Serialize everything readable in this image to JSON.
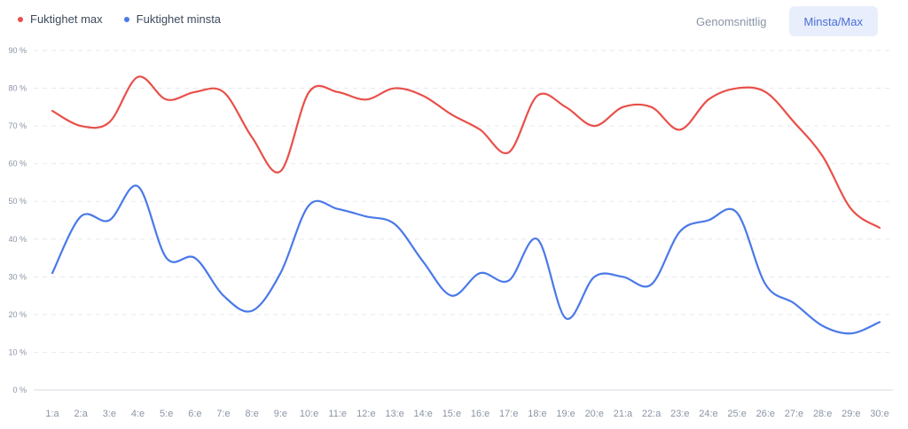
{
  "legend": {
    "max_label": "Fuktighet max",
    "min_label": "Fuktighet minsta"
  },
  "toggle": {
    "average_label": "Genomsnittlig",
    "minmax_label": "Minsta/Max",
    "selected": "Minsta/Max"
  },
  "colors": {
    "max": "#e8504a",
    "min": "#4a79e8",
    "grid": "#e6e9ef",
    "toggle_active_bg": "#e8eefc",
    "toggle_active_text": "#4a6fd6"
  },
  "chart_data": {
    "type": "line",
    "categories": [
      "1:a",
      "2:a",
      "3:e",
      "4:e",
      "5:e",
      "6:e",
      "7:e",
      "8:e",
      "9:e",
      "10:e",
      "11:e",
      "12:e",
      "13:e",
      "14:e",
      "15:e",
      "16:e",
      "17:e",
      "18:e",
      "19:e",
      "20:e",
      "21:a",
      "22:a",
      "23:e",
      "24:e",
      "25:e",
      "26:e",
      "27:e",
      "28:e",
      "29:e",
      "30:e"
    ],
    "series": [
      {
        "name": "Fuktighet max",
        "values": [
          74,
          70,
          71,
          83,
          77,
          79,
          79,
          67,
          58,
          79,
          79,
          77,
          80,
          78,
          73,
          69,
          63,
          78,
          75,
          70,
          75,
          75,
          69,
          77,
          80,
          79,
          71,
          62,
          48,
          43
        ]
      },
      {
        "name": "Fuktighet minsta",
        "values": [
          31,
          46,
          45,
          54,
          35,
          35,
          25,
          21,
          31,
          49,
          48,
          46,
          44,
          34,
          25,
          31,
          29,
          40,
          19,
          30,
          30,
          28,
          42,
          45,
          47,
          28,
          23,
          17,
          15,
          18
        ]
      }
    ],
    "ylim": [
      0,
      90
    ],
    "yticks": [
      {
        "value": 0,
        "label": "0 %"
      },
      {
        "value": 10,
        "label": "10 %"
      },
      {
        "value": 20,
        "label": "20 %"
      },
      {
        "value": 30,
        "label": "30 %"
      },
      {
        "value": 40,
        "label": "40 %"
      },
      {
        "value": 50,
        "label": "50 %"
      },
      {
        "value": 60,
        "label": "60 %"
      },
      {
        "value": 70,
        "label": "70 %"
      },
      {
        "value": 80,
        "label": "80 %"
      },
      {
        "value": 90,
        "label": "90 %"
      }
    ],
    "grid": true,
    "legend_position": "top-left"
  }
}
